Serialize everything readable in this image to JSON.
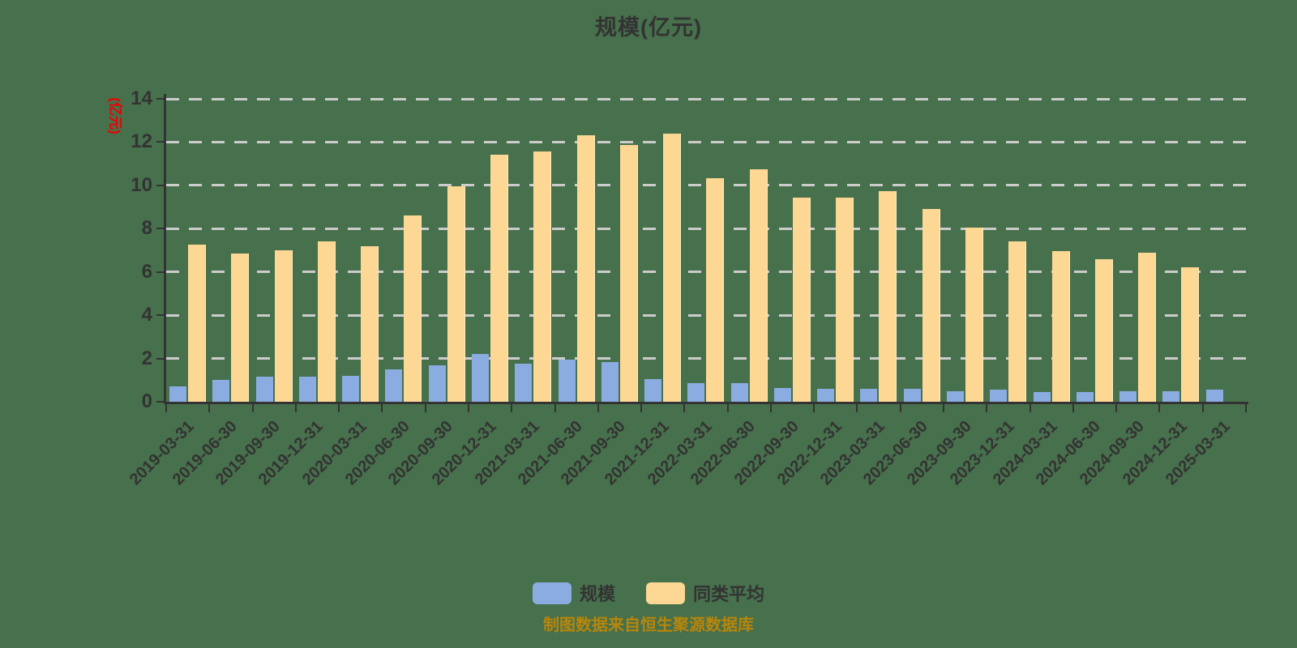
{
  "page": {
    "background_color": "#47704c",
    "axis_color": "#333333",
    "grid_color": "#cccccc",
    "text_color": "#333333"
  },
  "chart_data": {
    "type": "bar",
    "title": "规模(亿元)",
    "ylabel": "(亿元)",
    "ylabel_color": "#ee0000",
    "caption": "制图数据来自恒生聚源数据库",
    "caption_color": "#b8860b",
    "ylim": [
      0,
      14
    ],
    "ytick_step": 2,
    "grid": "horizontal-dashed",
    "legend_position": "bottom-center",
    "xlabel_rotation": -45,
    "categories": [
      "2019-03-31",
      "2019-06-30",
      "2019-09-30",
      "2019-12-31",
      "2020-03-31",
      "2020-06-30",
      "2020-09-30",
      "2020-12-31",
      "2021-03-31",
      "2021-06-30",
      "2021-09-30",
      "2021-12-31",
      "2022-03-31",
      "2022-06-30",
      "2022-09-30",
      "2022-12-31",
      "2023-03-31",
      "2023-06-30",
      "2023-09-30",
      "2023-12-31",
      "2024-03-31",
      "2024-06-30",
      "2024-09-30",
      "2024-12-31",
      "2025-03-31"
    ],
    "series": [
      {
        "id": "scale",
        "name": "规模",
        "color": "#8aace0",
        "values": [
          0.7,
          1.0,
          1.15,
          1.15,
          1.2,
          1.5,
          1.7,
          2.2,
          1.75,
          1.95,
          1.85,
          1.05,
          0.85,
          0.85,
          0.65,
          0.6,
          0.6,
          0.6,
          0.5,
          0.55,
          0.45,
          0.45,
          0.5,
          0.5,
          0.55
        ]
      },
      {
        "id": "peer-average",
        "name": "同类平均",
        "color": "#fdd794",
        "edge_color": "#ffeec0",
        "values": [
          7.25,
          6.85,
          7.0,
          7.4,
          7.2,
          8.6,
          9.95,
          11.4,
          11.55,
          12.3,
          11.85,
          12.4,
          10.35,
          10.75,
          9.45,
          9.45,
          9.75,
          8.9,
          8.05,
          7.4,
          6.95,
          6.6,
          6.9,
          6.2,
          null
        ]
      }
    ]
  }
}
